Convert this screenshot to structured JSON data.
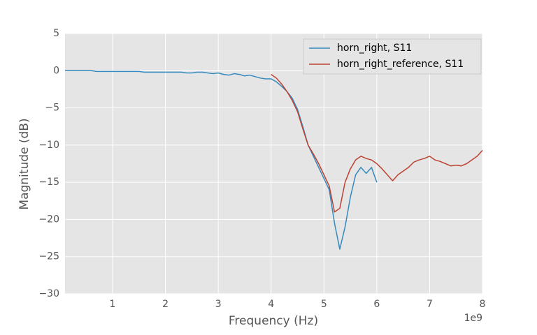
{
  "chart_data": {
    "type": "line",
    "xlabel": "Frequency (Hz)",
    "ylabel": "Magnitude (dB)",
    "x_offset_label": "1e9",
    "x": [
      0.1,
      0.2,
      0.3,
      0.4,
      0.5,
      0.6,
      0.7,
      0.8,
      0.9,
      1.0,
      1.1,
      1.2,
      1.3,
      1.4,
      1.5,
      1.6,
      1.7,
      1.8,
      1.9,
      2.0,
      2.1,
      2.2,
      2.3,
      2.4,
      2.5,
      2.6,
      2.7,
      2.8,
      2.9,
      3.0,
      3.1,
      3.2,
      3.3,
      3.4,
      3.5,
      3.6,
      3.7,
      3.8,
      3.9,
      4.0,
      4.1,
      4.2,
      4.3,
      4.4,
      4.5,
      4.6,
      4.7,
      4.8,
      4.9,
      5.0,
      5.1,
      5.2,
      5.3,
      5.4,
      5.5,
      5.6,
      5.7,
      5.8,
      5.9,
      6.0,
      6.1,
      6.2,
      6.3,
      6.4,
      6.5,
      6.6,
      6.7,
      6.8,
      6.9,
      7.0,
      7.1,
      7.2,
      7.3,
      7.4,
      7.5,
      7.6,
      7.7,
      7.8,
      7.9,
      8.0
    ],
    "series": [
      {
        "name": "horn_right, S11",
        "color": "#348abd",
        "values": [
          0,
          0,
          0,
          0,
          0,
          0,
          -0.1,
          -0.1,
          -0.1,
          -0.1,
          -0.1,
          -0.1,
          -0.1,
          -0.1,
          -0.1,
          -0.2,
          -0.2,
          -0.2,
          -0.2,
          -0.2,
          -0.2,
          -0.2,
          -0.2,
          -0.3,
          -0.3,
          -0.2,
          -0.2,
          -0.3,
          -0.4,
          -0.3,
          -0.5,
          -0.6,
          -0.4,
          -0.5,
          -0.7,
          -0.6,
          -0.8,
          -1.0,
          -1.1,
          -1.1,
          -1.5,
          -2.1,
          -2.8,
          -3.7,
          -5.2,
          -7.5,
          -10.0,
          -11.5,
          -13.0,
          -14.5,
          -16.0,
          -20.5,
          -24.0,
          -21.0,
          -17.0,
          -14.0,
          -13.0,
          -13.8,
          -13.0,
          -15.0,
          null,
          null,
          null,
          null,
          null,
          null,
          null,
          null,
          null,
          null,
          null,
          null,
          null,
          null,
          null,
          null,
          null,
          null,
          null,
          null
        ]
      },
      {
        "name": "horn_right_reference, S11",
        "color": "#bc4232",
        "values": [
          null,
          null,
          null,
          null,
          null,
          null,
          null,
          null,
          null,
          null,
          null,
          null,
          null,
          null,
          null,
          null,
          null,
          null,
          null,
          null,
          null,
          null,
          null,
          null,
          null,
          null,
          null,
          null,
          null,
          null,
          null,
          null,
          null,
          null,
          null,
          null,
          null,
          null,
          null,
          -0.5,
          -1.0,
          -1.8,
          -2.8,
          -4.0,
          -5.5,
          -7.8,
          -10.0,
          -11.2,
          -12.5,
          -14.0,
          -15.5,
          -19.0,
          -18.5,
          -15.0,
          -13.2,
          -12.0,
          -11.5,
          -11.8,
          -12.0,
          -12.5,
          -13.2,
          -14.0,
          -14.8,
          -14.0,
          -13.5,
          -13.0,
          -12.3,
          -12.0,
          -11.8,
          -11.5,
          -12.0,
          -12.2,
          -12.5,
          -12.8,
          -12.7,
          -12.8,
          -12.5,
          -12.0,
          -11.5,
          -10.7
        ]
      }
    ],
    "xlim": [
      0.1,
      8
    ],
    "ylim": [
      -30,
      5
    ],
    "xticks": [
      1,
      2,
      3,
      4,
      5,
      6,
      7,
      8
    ],
    "yticks": [
      {
        "value": -30,
        "label": "−30"
      },
      {
        "value": -25,
        "label": "−25"
      },
      {
        "value": -20,
        "label": "−20"
      },
      {
        "value": -15,
        "label": "−15"
      },
      {
        "value": -10,
        "label": "−10"
      },
      {
        "value": -5,
        "label": "−5"
      },
      0,
      5
    ],
    "grid": true,
    "legend": "upper right"
  }
}
